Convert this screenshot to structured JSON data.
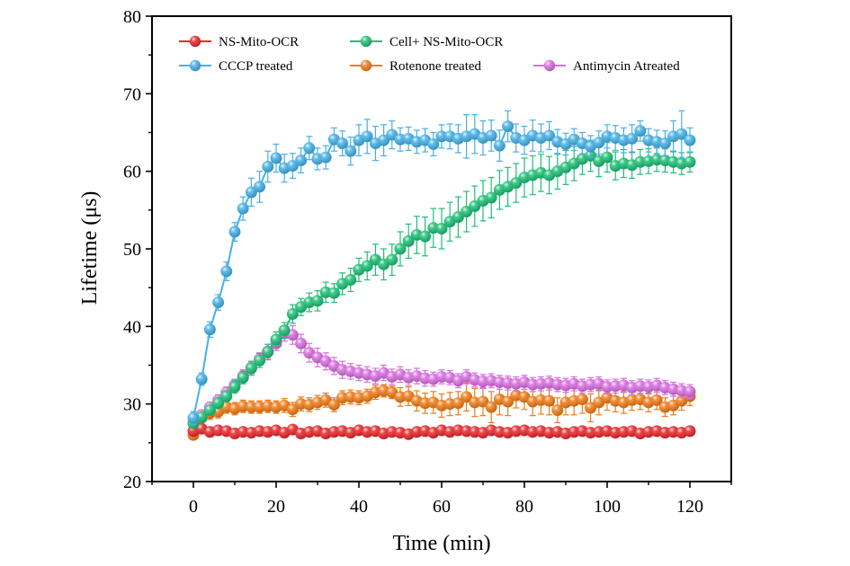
{
  "chart_data": {
    "type": "scatter",
    "title": "",
    "xlabel": "Time (min)",
    "ylabel": "Lifetime (μs)",
    "xlim": [
      -10,
      130
    ],
    "ylim": [
      20,
      80
    ],
    "xticks": [
      0,
      20,
      40,
      60,
      80,
      100,
      120
    ],
    "yticks": [
      20,
      30,
      40,
      50,
      60,
      70,
      80
    ],
    "x_tick_labels": [
      "0",
      "20",
      "40",
      "60",
      "80",
      "100",
      "120"
    ],
    "y_tick_labels": [
      "20",
      "30",
      "40",
      "50",
      "60",
      "70",
      "80"
    ],
    "grid": false,
    "legend_position": "top",
    "x": [
      0,
      2,
      4,
      6,
      8,
      10,
      12,
      14,
      16,
      18,
      20,
      22,
      24,
      26,
      28,
      30,
      32,
      34,
      36,
      38,
      40,
      42,
      44,
      46,
      48,
      50,
      52,
      54,
      56,
      58,
      60,
      62,
      64,
      66,
      68,
      70,
      72,
      74,
      76,
      78,
      80,
      82,
      84,
      86,
      88,
      90,
      92,
      94,
      96,
      98,
      100,
      102,
      104,
      106,
      108,
      110,
      112,
      114,
      116,
      118,
      120
    ],
    "series": [
      {
        "name": "NS-Mito-OCR",
        "color": "#e8282c",
        "line": false,
        "values": [
          26.5,
          26.8,
          26.4,
          26.6,
          26.5,
          26.2,
          26.4,
          26.3,
          26.5,
          26.4,
          26.6,
          26.3,
          26.7,
          26.2,
          26.4,
          26.5,
          26.2,
          26.4,
          26.5,
          26.3,
          26.6,
          26.4,
          26.5,
          26.2,
          26.4,
          26.3,
          26.1,
          26.4,
          26.5,
          26.3,
          26.6,
          26.4,
          26.6,
          26.5,
          26.4,
          26.3,
          26.6,
          26.4,
          26.3,
          26.5,
          26.6,
          26.4,
          26.5,
          26.3,
          26.4,
          26.2,
          26.4,
          26.5,
          26.3,
          26.4,
          26.5,
          26.3,
          26.4,
          26.5,
          26.2,
          26.4,
          26.5,
          26.3,
          26.4,
          26.3,
          26.5
        ],
        "errors": [
          0.5,
          0.5,
          0.4,
          0.5,
          0.4,
          0.5,
          0.4,
          0.5,
          0.4,
          0.5,
          0.4,
          0.5,
          0.4,
          0.5,
          0.4,
          0.5,
          0.4,
          0.5,
          0.4,
          0.5,
          0.4,
          0.5,
          0.4,
          0.5,
          0.4,
          0.5,
          0.4,
          0.5,
          0.4,
          0.5,
          0.4,
          0.5,
          0.4,
          0.5,
          0.4,
          0.5,
          0.4,
          0.5,
          0.4,
          0.5,
          0.4,
          0.5,
          0.4,
          0.5,
          0.4,
          0.5,
          0.4,
          0.5,
          0.4,
          0.5,
          0.4,
          0.5,
          0.4,
          0.5,
          0.4,
          0.5,
          0.4,
          0.5,
          0.4,
          0.5,
          0.4
        ]
      },
      {
        "name": "Cell+ NS-Mito-OCR",
        "color": "#1fbf76",
        "line": true,
        "values": [
          27.5,
          28.3,
          29.2,
          30.1,
          31.0,
          32.2,
          33.4,
          34.6,
          35.6,
          36.7,
          38.3,
          39.5,
          41.6,
          42.5,
          43.1,
          43.3,
          44.4,
          44.3,
          45.5,
          46.0,
          47.3,
          47.8,
          48.6,
          48.0,
          48.6,
          50.0,
          51.0,
          51.8,
          51.6,
          52.7,
          52.6,
          53.5,
          54.1,
          54.8,
          55.5,
          56.2,
          56.6,
          57.6,
          58.0,
          58.5,
          59.2,
          59.5,
          59.8,
          59.5,
          60.0,
          60.5,
          61.0,
          61.6,
          62.0,
          61.3,
          61.8,
          60.7,
          61.0,
          60.8,
          61.2,
          61.3,
          61.5,
          61.4,
          61.2,
          61.0,
          61.2
        ],
        "errors": [
          0.5,
          0.6,
          0.6,
          0.7,
          0.7,
          0.8,
          0.8,
          0.9,
          0.9,
          1.0,
          1.0,
          1.0,
          1.2,
          1.1,
          1.2,
          1.3,
          1.3,
          1.2,
          1.4,
          1.5,
          1.5,
          1.8,
          2.0,
          2.0,
          2.0,
          2.2,
          2.2,
          2.4,
          2.5,
          2.5,
          2.6,
          2.5,
          2.6,
          2.6,
          2.6,
          2.6,
          2.6,
          2.5,
          2.5,
          2.5,
          2.5,
          2.5,
          2.4,
          2.4,
          2.3,
          2.2,
          2.2,
          2.0,
          2.0,
          2.0,
          1.9,
          1.8,
          1.8,
          1.7,
          1.6,
          1.6,
          1.5,
          1.5,
          1.4,
          1.4,
          1.3
        ]
      },
      {
        "name": "CCCP treated",
        "color": "#46b0e6",
        "line": true,
        "values": [
          28.2,
          33.2,
          39.6,
          43.1,
          47.1,
          52.2,
          55.2,
          57.3,
          58.0,
          60.6,
          61.7,
          60.4,
          60.7,
          61.4,
          63.0,
          61.6,
          61.8,
          64.1,
          63.6,
          62.6,
          64.0,
          64.5,
          63.6,
          64.0,
          64.7,
          64.1,
          64.2,
          63.8,
          64.0,
          63.5,
          64.5,
          64.5,
          64.2,
          64.5,
          64.8,
          64.3,
          64.6,
          63.3,
          65.8,
          64.3,
          64.0,
          64.6,
          64.3,
          64.6,
          63.8,
          63.5,
          64.1,
          63.6,
          63.2,
          63.7,
          64.5,
          64.3,
          64.0,
          64.2,
          65.2,
          64.0,
          63.8,
          63.6,
          64.5,
          64.8,
          64.0
        ],
        "errors": [
          0.8,
          0.8,
          1.0,
          1.0,
          1.2,
          1.2,
          1.5,
          1.8,
          2.0,
          2.0,
          1.8,
          1.8,
          1.6,
          1.6,
          1.5,
          1.4,
          1.5,
          1.5,
          1.6,
          1.8,
          2.0,
          2.2,
          2.2,
          2.0,
          1.8,
          1.5,
          1.5,
          1.5,
          1.5,
          1.5,
          1.5,
          1.6,
          1.8,
          2.8,
          2.5,
          2.2,
          2.0,
          2.0,
          2.0,
          1.8,
          1.8,
          2.0,
          1.8,
          1.8,
          1.6,
          1.4,
          1.4,
          1.4,
          1.4,
          1.5,
          1.5,
          1.6,
          1.6,
          1.8,
          1.3,
          1.5,
          1.5,
          1.6,
          2.0,
          3.0,
          1.6
        ]
      },
      {
        "name": "Rotenone treated",
        "color": "#f07c18",
        "line": true,
        "values": [
          26.0,
          28.2,
          28.8,
          29.0,
          29.6,
          29.4,
          29.7,
          29.6,
          29.6,
          29.7,
          29.6,
          29.8,
          29.3,
          30.0,
          29.9,
          30.2,
          30.5,
          29.9,
          30.8,
          30.9,
          30.8,
          31.0,
          31.5,
          31.7,
          31.5,
          30.9,
          31.0,
          30.4,
          30.1,
          30.2,
          29.8,
          30.0,
          30.1,
          30.9,
          30.2,
          30.3,
          29.6,
          30.6,
          30.3,
          31.1,
          30.9,
          30.3,
          30.5,
          30.4,
          29.2,
          30.2,
          30.4,
          30.6,
          29.5,
          30.2,
          30.8,
          30.4,
          30.2,
          30.5,
          30.6,
          30.2,
          30.5,
          29.6,
          29.8,
          30.4,
          31.0
        ],
        "errors": [
          0.4,
          0.8,
          0.8,
          0.8,
          0.8,
          0.8,
          0.8,
          0.8,
          0.8,
          0.8,
          0.8,
          0.9,
          0.9,
          0.9,
          0.9,
          0.9,
          0.9,
          0.9,
          0.9,
          0.9,
          0.9,
          0.9,
          0.9,
          0.8,
          0.8,
          1.2,
          1.2,
          1.3,
          1.3,
          1.4,
          1.5,
          1.5,
          1.5,
          1.8,
          1.8,
          1.8,
          2.0,
          2.0,
          1.8,
          1.6,
          1.6,
          1.8,
          1.8,
          1.8,
          1.6,
          1.6,
          1.8,
          1.8,
          1.8,
          1.6,
          1.6,
          1.4,
          1.4,
          1.3,
          1.3,
          1.2,
          1.2,
          1.2,
          1.2,
          1.2,
          1.2
        ]
      },
      {
        "name": "Antimycin Atreated",
        "color": "#d86ee0",
        "line": true,
        "values": [
          27.6,
          28.6,
          29.6,
          30.5,
          31.5,
          32.5,
          33.6,
          34.7,
          35.8,
          36.8,
          37.8,
          39.1,
          38.9,
          37.8,
          36.6,
          36.0,
          35.5,
          34.9,
          34.4,
          34.2,
          34.0,
          33.8,
          33.6,
          34.0,
          33.5,
          33.8,
          33.4,
          33.6,
          33.3,
          33.2,
          33.5,
          33.4,
          33.0,
          33.5,
          33.1,
          32.9,
          33.0,
          32.8,
          32.7,
          32.6,
          32.8,
          32.5,
          32.6,
          32.7,
          32.5,
          32.4,
          32.6,
          32.3,
          32.5,
          32.6,
          32.2,
          32.3,
          32.4,
          32.1,
          32.3,
          32.2,
          32.4,
          32.1,
          31.9,
          31.7,
          31.6
        ],
        "errors": [
          0.5,
          0.6,
          0.6,
          0.7,
          0.7,
          0.7,
          0.8,
          0.8,
          0.8,
          0.9,
          0.9,
          1.0,
          1.2,
          1.2,
          1.2,
          1.2,
          1.1,
          1.1,
          1.1,
          1.0,
          1.0,
          1.0,
          1.0,
          1.0,
          1.0,
          1.0,
          1.0,
          1.0,
          1.0,
          0.9,
          0.9,
          0.9,
          0.9,
          0.9,
          0.9,
          0.9,
          0.9,
          0.9,
          0.9,
          0.9,
          0.9,
          0.9,
          0.9,
          0.9,
          0.9,
          0.9,
          0.9,
          0.9,
          0.9,
          0.9,
          0.9,
          0.9,
          0.9,
          0.9,
          0.9,
          0.9,
          0.9,
          0.9,
          0.9,
          0.9,
          0.9
        ]
      }
    ]
  }
}
